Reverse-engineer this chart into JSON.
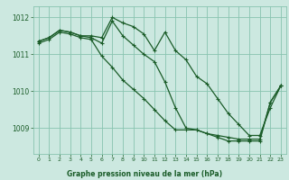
{
  "title": "Graphe pression niveau de la mer (hPa)",
  "bg_color": "#cce8e0",
  "grid_color": "#88c4b0",
  "line_color": "#1a5c28",
  "xlim": [
    -0.5,
    23.5
  ],
  "ylim": [
    1008.3,
    1012.3
  ],
  "yticks": [
    1009,
    1010,
    1011,
    1012
  ],
  "xticks": [
    0,
    1,
    2,
    3,
    4,
    5,
    6,
    7,
    8,
    9,
    10,
    11,
    12,
    13,
    14,
    15,
    16,
    17,
    18,
    19,
    20,
    21,
    22,
    23
  ],
  "series": [
    {
      "x": [
        0,
        1,
        2,
        3,
        4,
        5,
        6,
        7,
        8,
        9,
        10,
        11,
        12,
        13,
        14,
        15,
        16,
        17,
        18,
        19,
        20,
        21,
        22,
        23
      ],
      "y": [
        1011.35,
        1011.45,
        1011.65,
        1011.6,
        1011.5,
        1011.5,
        1011.45,
        1012.0,
        1011.85,
        1011.75,
        1011.55,
        1011.1,
        1011.6,
        1011.1,
        1010.85,
        1010.4,
        1010.2,
        1009.8,
        1009.4,
        1009.1,
        1008.8,
        1008.8,
        1009.55,
        1010.15
      ]
    },
    {
      "x": [
        0,
        1,
        2,
        3,
        4,
        5,
        6,
        7,
        8,
        9,
        10,
        11,
        12,
        13,
        14,
        15,
        16,
        17,
        18,
        19,
        20,
        21,
        22,
        23
      ],
      "y": [
        1011.35,
        1011.45,
        1011.65,
        1011.6,
        1011.5,
        1011.45,
        1011.3,
        1011.9,
        1011.5,
        1011.25,
        1011.0,
        1010.8,
        1010.25,
        1009.55,
        1009.0,
        1008.95,
        1008.85,
        1008.8,
        1008.75,
        1008.7,
        1008.7,
        1008.7,
        1009.7,
        1010.15
      ]
    },
    {
      "x": [
        0,
        1,
        2,
        3,
        4,
        5,
        6,
        7,
        8,
        9,
        10,
        11,
        12,
        13,
        14,
        15,
        16,
        17,
        18,
        19,
        20,
        21,
        22,
        23
      ],
      "y": [
        1011.3,
        1011.4,
        1011.6,
        1011.55,
        1011.45,
        1011.4,
        1010.95,
        1010.65,
        1010.3,
        1010.05,
        1009.8,
        1009.5,
        1009.2,
        1008.95,
        1008.95,
        1008.95,
        1008.85,
        1008.75,
        1008.65,
        1008.65,
        1008.65,
        1008.65,
        1009.7,
        1010.15
      ]
    }
  ]
}
